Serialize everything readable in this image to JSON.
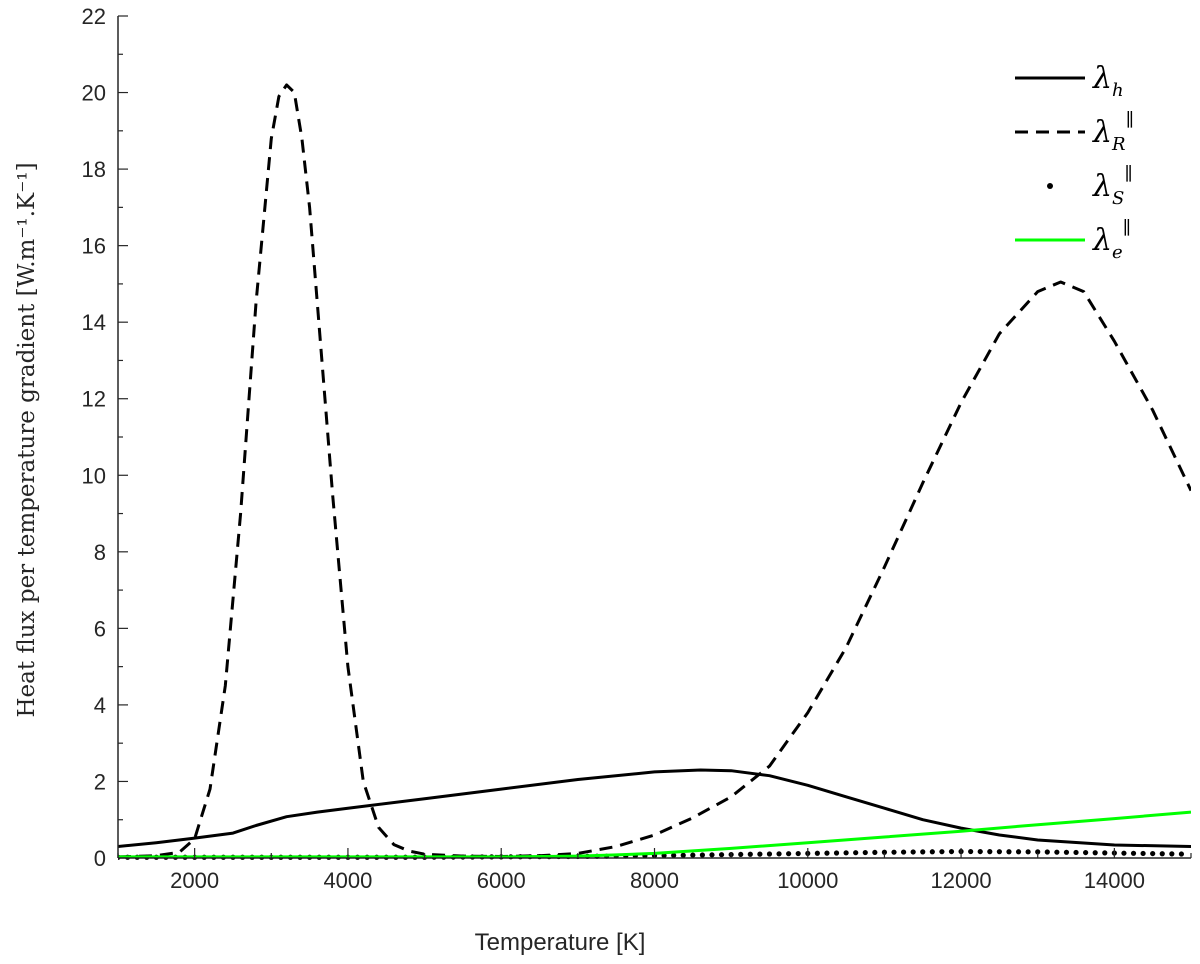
{
  "chart_data": {
    "type": "line",
    "xlabel": "Temperature [K]",
    "ylabel": "Heat flux per temperature gradient [W.m⁻¹.K⁻¹]",
    "xlim": [
      1000,
      15000
    ],
    "ylim": [
      0,
      22
    ],
    "xticks": [
      2000,
      4000,
      6000,
      8000,
      10000,
      12000,
      14000
    ],
    "yticks": [
      0,
      2,
      4,
      6,
      8,
      10,
      12,
      14,
      16,
      18,
      20,
      22
    ],
    "grid": false,
    "legend_position": "top-right",
    "series": [
      {
        "name": "λ_h",
        "legend_main": "λ",
        "legend_sub": "h",
        "legend_sup": "",
        "style": "solid",
        "color": "#000000",
        "x": [
          1000,
          1500,
          2000,
          2500,
          2800,
          3200,
          3600,
          4000,
          5000,
          6000,
          7000,
          8000,
          8600,
          9000,
          9500,
          10000,
          10500,
          11000,
          11500,
          12000,
          12500,
          13000,
          14000,
          15000
        ],
        "y": [
          0.3,
          0.4,
          0.52,
          0.65,
          0.85,
          1.08,
          1.2,
          1.3,
          1.55,
          1.8,
          2.05,
          2.25,
          2.3,
          2.28,
          2.15,
          1.9,
          1.6,
          1.3,
          1.0,
          0.78,
          0.6,
          0.47,
          0.34,
          0.3
        ]
      },
      {
        "name": "λ_R∥",
        "legend_main": "λ",
        "legend_sub": "R",
        "legend_sup": "∥",
        "style": "dashed",
        "color": "#000000",
        "x": [
          1000,
          1500,
          1800,
          2000,
          2200,
          2400,
          2600,
          2800,
          3000,
          3100,
          3200,
          3300,
          3400,
          3500,
          3600,
          3800,
          4000,
          4200,
          4400,
          4600,
          4800,
          5000,
          5500,
          6000,
          6500,
          7000,
          7500,
          8000,
          8500,
          9000,
          9500,
          10000,
          10500,
          11000,
          11500,
          12000,
          12500,
          13000,
          13300,
          13600,
          14000,
          14500,
          15000
        ],
        "y": [
          0.03,
          0.06,
          0.15,
          0.5,
          1.8,
          4.5,
          9.0,
          14.5,
          18.8,
          19.9,
          20.2,
          20.0,
          18.8,
          17.0,
          14.5,
          9.5,
          5.0,
          2.0,
          0.8,
          0.35,
          0.18,
          0.1,
          0.05,
          0.04,
          0.06,
          0.12,
          0.3,
          0.6,
          1.05,
          1.6,
          2.4,
          3.8,
          5.5,
          7.6,
          9.8,
          11.9,
          13.7,
          14.8,
          15.05,
          14.8,
          13.5,
          11.7,
          9.6
        ]
      },
      {
        "name": "λ_S∥",
        "legend_main": "λ",
        "legend_sub": "S",
        "legend_sup": "∥",
        "style": "dotted",
        "color": "#000000",
        "x": [
          1000,
          2000,
          3000,
          4000,
          5000,
          6000,
          7000,
          8000,
          9000,
          10000,
          11000,
          12000,
          13000,
          14000,
          15000
        ],
        "y": [
          0.02,
          0.02,
          0.02,
          0.02,
          0.02,
          0.03,
          0.04,
          0.06,
          0.09,
          0.12,
          0.15,
          0.17,
          0.16,
          0.13,
          0.1
        ]
      },
      {
        "name": "λ_e∥",
        "legend_main": "λ",
        "legend_sub": "e",
        "legend_sup": "∥",
        "style": "solid",
        "color": "#00ff00",
        "x": [
          1000,
          2000,
          3000,
          4000,
          5000,
          6000,
          7000,
          7500,
          8000,
          9000,
          10000,
          11000,
          12000,
          13000,
          14000,
          15000
        ],
        "y": [
          0.03,
          0.03,
          0.03,
          0.03,
          0.03,
          0.03,
          0.05,
          0.08,
          0.12,
          0.25,
          0.4,
          0.55,
          0.7,
          0.87,
          1.03,
          1.2
        ]
      }
    ]
  }
}
